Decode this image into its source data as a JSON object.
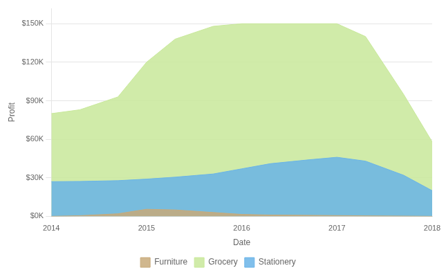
{
  "chart_data": {
    "type": "area",
    "xlabel": "Date",
    "ylabel": "Profit",
    "x": [
      2014,
      2014.3,
      2014.7,
      2015,
      2015.3,
      2015.7,
      2016,
      2016.3,
      2016.7,
      2017,
      2017.3,
      2017.7,
      2018
    ],
    "series": [
      {
        "name": "Furniture",
        "color": "#c8aa7a",
        "values": [
          0,
          500,
          2000,
          5500,
          5000,
          3000,
          1500,
          1000,
          800,
          600,
          400,
          200,
          0
        ]
      },
      {
        "name": "Grocery",
        "color": "#c8e89a",
        "values": [
          80000,
          83000,
          93000,
          120000,
          138000,
          148000,
          150000,
          150000,
          150000,
          150000,
          140000,
          95000,
          58000
        ]
      },
      {
        "name": "Stationery",
        "color": "#6ab4e8",
        "values": [
          27000,
          27200,
          27800,
          29000,
          30500,
          33000,
          37000,
          41000,
          44000,
          46000,
          43000,
          32000,
          20000
        ]
      }
    ],
    "xlim": [
      2014,
      2018
    ],
    "xticks": [
      2014,
      2015,
      2016,
      2017,
      2018
    ],
    "ylim": [
      0,
      162000
    ],
    "yticks": [
      {
        "value": 0,
        "label": "$0K"
      },
      {
        "value": 30000,
        "label": "$30K"
      },
      {
        "value": 60000,
        "label": "$60K"
      },
      {
        "value": 90000,
        "label": "$90K"
      },
      {
        "value": 120000,
        "label": "$120K"
      },
      {
        "value": 150000,
        "label": "$150K"
      }
    ],
    "grid": true,
    "legend": "bottom"
  }
}
